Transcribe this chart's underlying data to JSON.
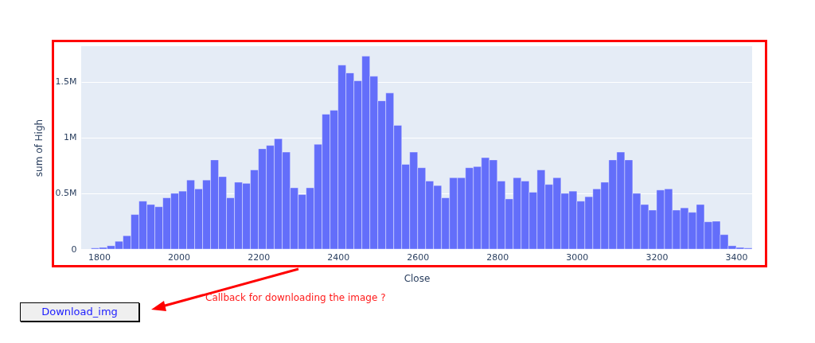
{
  "chart_data": {
    "type": "histogram",
    "xlabel": "Close",
    "ylabel": "sum of High",
    "color": "#636efa",
    "bins": [
      1780,
      1800,
      1820,
      1840,
      1860,
      1880,
      1900,
      1920,
      1940,
      1960,
      1980,
      2000,
      2020,
      2040,
      2060,
      2080,
      2100,
      2120,
      2140,
      2160,
      2180,
      2200,
      2220,
      2240,
      2260,
      2280,
      2300,
      2320,
      2340,
      2360,
      2380,
      2400,
      2420,
      2440,
      2460,
      2480,
      2500,
      2520,
      2540,
      2560,
      2580,
      2600,
      2620,
      2640,
      2660,
      2680,
      2700,
      2720,
      2740,
      2760,
      2780,
      2800,
      2820,
      2840,
      2860,
      2880,
      2900,
      2920,
      2940,
      2960,
      2980,
      3000,
      3020,
      3040,
      3060,
      3080,
      3100,
      3120,
      3140,
      3160,
      3180,
      3200,
      3220,
      3240,
      3260,
      3280,
      3300,
      3320,
      3340,
      3360,
      3380,
      3400,
      3420,
      3440
    ],
    "values": [
      10000,
      15000,
      30000,
      70000,
      120000,
      310000,
      430000,
      400000,
      380000,
      460000,
      500000,
      520000,
      620000,
      540000,
      620000,
      800000,
      650000,
      460000,
      600000,
      590000,
      710000,
      900000,
      930000,
      990000,
      870000,
      550000,
      490000,
      550000,
      940000,
      1210000,
      1245000,
      1650000,
      1580000,
      1510000,
      1730000,
      1550000,
      1330000,
      1400000,
      1110000,
      760000,
      870000,
      730000,
      610000,
      570000,
      460000,
      640000,
      640000,
      730000,
      740000,
      820000,
      800000,
      610000,
      450000,
      640000,
      610000,
      510000,
      710000,
      580000,
      640000,
      500000,
      520000,
      430000,
      470000,
      540000,
      600000,
      800000,
      870000,
      800000,
      500000,
      400000,
      350000,
      530000,
      540000,
      350000,
      370000,
      330000,
      400000,
      245000,
      250000,
      130000,
      30000,
      15000,
      10000
    ],
    "xlim": [
      1755,
      3440
    ],
    "xticks": [
      1800,
      2000,
      2200,
      2400,
      2600,
      2800,
      3000,
      3200,
      3400
    ],
    "ylim": [
      0,
      1820000
    ],
    "yticks": [
      0,
      {
        "value": 500000,
        "label": "0.5M"
      },
      {
        "value": 1000000,
        "label": "1M"
      },
      {
        "value": 1500000,
        "label": "1.5M"
      }
    ],
    "grid": "y",
    "annotations": [
      "Callback for downloading the image ?",
      "Download_img"
    ]
  }
}
